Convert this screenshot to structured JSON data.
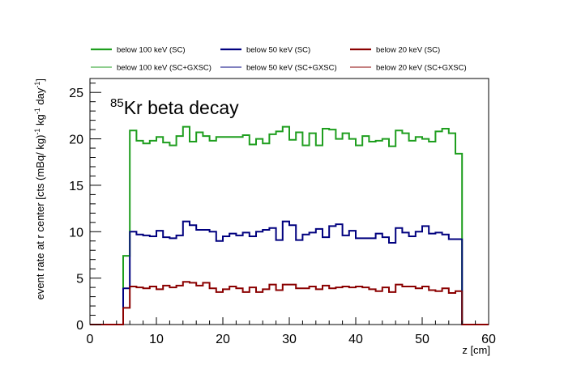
{
  "chart_data": {
    "type": "line",
    "style": "step-histogram",
    "xlabel": "z [cm]",
    "ylabel": "event rate at r center [cts (mBq/ kg)⁻¹ kg⁻¹ day⁻¹]",
    "ylabel_parts": {
      "prefix": "event rate at r center [cts (mBq/ kg)",
      "sup1": "-1",
      "mid": " kg",
      "sup2": "-1",
      "suffix": " day",
      "sup3": "-1",
      "end": "]"
    },
    "xlim": [
      0,
      60
    ],
    "ylim": [
      0,
      26.5
    ],
    "xticks": [
      0,
      10,
      20,
      30,
      40,
      50,
      60
    ],
    "yticks": [
      0,
      5,
      10,
      15,
      20,
      25
    ],
    "annotation": {
      "sup": "85",
      "text": "Kr beta decay"
    },
    "legend_position": "top, above plot, 3 columns",
    "bin_width": 1,
    "x_start": 0,
    "series": [
      {
        "name": "below 100 keV (SC)",
        "color": "#1e9e1e",
        "width": "thick",
        "values": [
          0,
          0,
          0,
          0,
          0,
          7.4,
          20.9,
          19.8,
          19.5,
          19.8,
          20.2,
          19.6,
          19.3,
          20.3,
          21.3,
          19.7,
          20.7,
          20.3,
          19.8,
          20.2,
          20.2,
          20.2,
          20.2,
          20.4,
          19.4,
          20.0,
          19.5,
          20.5,
          20.8,
          21.3,
          19.9,
          20.7,
          19.3,
          20.6,
          19.3,
          21.1,
          21.0,
          20.0,
          20.6,
          20.0,
          19.3,
          20.3,
          19.7,
          19.8,
          20.0,
          19.2,
          20.9,
          20.6,
          19.8,
          20.2,
          20.0,
          19.7,
          20.8,
          21.1,
          20.6,
          18.4,
          0,
          0,
          0,
          0
        ]
      },
      {
        "name": "below 50 keV (SC)",
        "color": "#00007f",
        "width": "thick",
        "values": [
          0,
          0,
          0,
          0,
          0,
          3.9,
          10.0,
          9.7,
          9.6,
          9.5,
          10.1,
          9.4,
          9.3,
          9.6,
          11.1,
          10.7,
          10.2,
          10.2,
          10.0,
          9.0,
          9.5,
          9.8,
          9.6,
          9.9,
          9.5,
          10.0,
          10.2,
          10.4,
          9.1,
          11.1,
          10.7,
          9.1,
          9.7,
          9.9,
          10.3,
          9.4,
          10.6,
          10.8,
          9.6,
          10.1,
          9.3,
          9.3,
          9.3,
          9.8,
          9.4,
          8.8,
          10.4,
          9.9,
          9.5,
          10.0,
          10.6,
          9.8,
          9.9,
          9.7,
          9.2,
          9.2,
          0,
          0,
          0,
          0
        ]
      },
      {
        "name": "below 20 keV (SC)",
        "color": "#8b0000",
        "width": "thick",
        "values": [
          0,
          0,
          0,
          0,
          0,
          1.8,
          4.1,
          4.0,
          3.9,
          4.1,
          3.8,
          4.2,
          4.0,
          4.2,
          4.6,
          4.5,
          4.2,
          4.5,
          3.9,
          3.5,
          3.8,
          4.1,
          3.9,
          3.5,
          4.0,
          3.5,
          3.8,
          4.3,
          3.7,
          4.3,
          4.3,
          3.9,
          3.9,
          4.1,
          3.8,
          4.2,
          3.9,
          4.0,
          4.1,
          4.0,
          4.1,
          4.0,
          3.8,
          3.6,
          4.0,
          3.5,
          4.3,
          4.1,
          4.1,
          3.9,
          4.1,
          3.7,
          3.6,
          3.9,
          3.4,
          3.6,
          0,
          0,
          0,
          0
        ]
      },
      {
        "name": "below 100 keV (SC+GXSC)",
        "color": "#1e9e1e",
        "width": "thin",
        "values": [
          0,
          0,
          0,
          0,
          0,
          7.4,
          20.9,
          19.8,
          19.5,
          19.8,
          20.2,
          19.6,
          19.3,
          20.3,
          21.3,
          19.7,
          20.7,
          20.3,
          19.8,
          20.2,
          20.2,
          20.2,
          20.2,
          20.4,
          19.4,
          20.0,
          19.5,
          20.5,
          20.8,
          21.3,
          19.9,
          20.7,
          19.3,
          20.6,
          19.3,
          21.1,
          21.0,
          20.0,
          20.6,
          20.0,
          19.3,
          20.3,
          19.7,
          19.8,
          20.0,
          19.2,
          20.9,
          20.6,
          19.8,
          20.2,
          20.0,
          19.7,
          20.8,
          21.1,
          20.6,
          18.4,
          0,
          0,
          0,
          0
        ]
      },
      {
        "name": "below 50 keV (SC+GXSC)",
        "color": "#00007f",
        "width": "thin",
        "values": [
          0,
          0,
          0,
          0,
          0,
          3.9,
          10.0,
          9.7,
          9.6,
          9.5,
          10.1,
          9.4,
          9.3,
          9.6,
          11.1,
          10.7,
          10.2,
          10.2,
          10.0,
          9.0,
          9.5,
          9.8,
          9.6,
          9.9,
          9.5,
          10.0,
          10.2,
          10.4,
          9.1,
          11.1,
          10.7,
          9.1,
          9.7,
          9.9,
          10.3,
          9.4,
          10.6,
          10.8,
          9.6,
          10.1,
          9.3,
          9.3,
          9.3,
          9.8,
          9.4,
          8.8,
          10.4,
          9.9,
          9.5,
          10.0,
          10.6,
          9.8,
          9.9,
          9.7,
          9.2,
          9.2,
          0,
          0,
          0,
          0
        ]
      },
      {
        "name": "below 20 keV (SC+GXSC)",
        "color": "#8b0000",
        "width": "thin",
        "values": [
          0,
          0,
          0,
          0,
          0,
          1.8,
          4.1,
          4.0,
          3.9,
          4.1,
          3.8,
          4.2,
          4.0,
          4.2,
          4.6,
          4.5,
          4.2,
          4.5,
          3.9,
          3.5,
          3.8,
          4.1,
          3.9,
          3.5,
          4.0,
          3.5,
          3.8,
          4.3,
          3.7,
          4.3,
          4.3,
          3.9,
          3.9,
          4.1,
          3.8,
          4.2,
          3.9,
          4.0,
          4.1,
          4.0,
          4.1,
          4.0,
          3.8,
          3.6,
          4.0,
          3.5,
          4.3,
          4.1,
          4.1,
          3.9,
          4.1,
          3.7,
          3.6,
          3.9,
          3.4,
          3.6,
          0,
          0,
          0,
          0
        ]
      }
    ]
  }
}
